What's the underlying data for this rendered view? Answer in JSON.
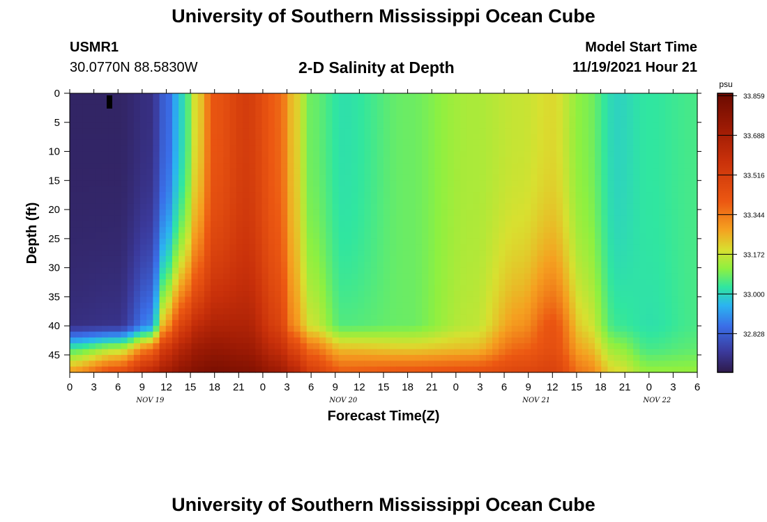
{
  "header": {
    "title": "University of Southern Mississippi Ocean Cube",
    "station": "USMR1",
    "coordinates": "30.0770N  88.5830W",
    "plot_title": "2-D Salinity at Depth",
    "model_start_label": "Model Start Time",
    "model_start_value": "11/19/2021 Hour 21"
  },
  "footer": {
    "title": "University of Southern Mississippi Ocean Cube"
  },
  "chart_data": {
    "type": "heatmap",
    "title": "2-D Salinity at Depth",
    "xlabel": "Forecast Time(Z)",
    "ylabel": "Depth (ft)",
    "x_tick_labels": [
      "0",
      "3",
      "6",
      "9",
      "12",
      "15",
      "18",
      "21",
      "0",
      "3",
      "6",
      "9",
      "12",
      "15",
      "18",
      "21",
      "0",
      "3",
      "6",
      "9",
      "12",
      "15",
      "18",
      "21",
      "0",
      "3",
      "6"
    ],
    "x_date_labels": [
      {
        "label": "NOV 19",
        "hour": 10
      },
      {
        "label": "NOV 20",
        "hour": 34
      },
      {
        "label": "NOV 21",
        "hour": 58
      },
      {
        "label": "NOV 22",
        "hour": 73
      }
    ],
    "xlim_hours": [
      0,
      78
    ],
    "y_tick_labels": [
      "0",
      "5",
      "10",
      "15",
      "20",
      "25",
      "30",
      "35",
      "40",
      "45"
    ],
    "y_tick_values": [
      0,
      5,
      10,
      15,
      20,
      25,
      30,
      35,
      40,
      45
    ],
    "ylim": [
      0,
      48
    ],
    "y_inverted": true,
    "colorbar": {
      "unit": "psu",
      "tick_labels": [
        "33.859",
        "33.688",
        "33.516",
        "33.344",
        "33.172",
        "33.000",
        "32.828"
      ],
      "tick_values": [
        33.859,
        33.688,
        33.516,
        33.344,
        33.172,
        33.0,
        32.828
      ],
      "range": [
        32.66,
        33.87
      ],
      "stops": [
        {
          "v": 32.66,
          "color": "#2e1a4a"
        },
        {
          "v": 32.75,
          "color": "#3b3a9c"
        },
        {
          "v": 32.86,
          "color": "#3a6ee8"
        },
        {
          "v": 32.95,
          "color": "#2bb4f0"
        },
        {
          "v": 33.03,
          "color": "#30e6a0"
        },
        {
          "v": 33.11,
          "color": "#8ef040"
        },
        {
          "v": 33.19,
          "color": "#d8e030"
        },
        {
          "v": 33.28,
          "color": "#f5a020"
        },
        {
          "v": 33.4,
          "color": "#ec5812"
        },
        {
          "v": 33.58,
          "color": "#c8300a"
        },
        {
          "v": 33.72,
          "color": "#9c1a04"
        },
        {
          "v": 33.87,
          "color": "#6a0a00"
        }
      ]
    },
    "profiles_hours": [
      0,
      6,
      10,
      12,
      14,
      16,
      18,
      22,
      26,
      28,
      30,
      34,
      42,
      50,
      56,
      60,
      64,
      68,
      72,
      78
    ],
    "profiles": [
      {
        "surface": 32.69,
        "d40": 32.72,
        "d44": 33.05,
        "bottom": 33.3
      },
      {
        "surface": 32.69,
        "d40": 32.73,
        "d44": 33.15,
        "bottom": 33.45
      },
      {
        "surface": 32.72,
        "d40": 32.9,
        "d44": 33.35,
        "bottom": 33.62
      },
      {
        "surface": 32.84,
        "d40": 33.3,
        "d44": 33.55,
        "bottom": 33.7
      },
      {
        "surface": 33.0,
        "d40": 33.5,
        "d44": 33.65,
        "bottom": 33.76
      },
      {
        "surface": 33.22,
        "d40": 33.62,
        "d44": 33.72,
        "bottom": 33.8
      },
      {
        "surface": 33.42,
        "d40": 33.66,
        "d44": 33.74,
        "bottom": 33.82
      },
      {
        "surface": 33.52,
        "d40": 33.66,
        "d44": 33.72,
        "bottom": 33.8
      },
      {
        "surface": 33.38,
        "d40": 33.5,
        "d44": 33.6,
        "bottom": 33.72
      },
      {
        "surface": 33.22,
        "d40": 33.3,
        "d44": 33.48,
        "bottom": 33.64
      },
      {
        "surface": 33.08,
        "d40": 33.18,
        "d44": 33.36,
        "bottom": 33.52
      },
      {
        "surface": 33.02,
        "d40": 33.06,
        "d44": 33.24,
        "bottom": 33.4
      },
      {
        "surface": 33.08,
        "d40": 33.08,
        "d44": 33.22,
        "bottom": 33.42
      },
      {
        "surface": 33.14,
        "d40": 33.16,
        "d44": 33.24,
        "bottom": 33.44
      },
      {
        "surface": 33.17,
        "d40": 33.3,
        "d44": 33.38,
        "bottom": 33.48
      },
      {
        "surface": 33.2,
        "d40": 33.42,
        "d44": 33.44,
        "bottom": 33.5
      },
      {
        "surface": 33.1,
        "d40": 33.2,
        "d44": 33.26,
        "bottom": 33.34
      },
      {
        "surface": 33.0,
        "d40": 33.04,
        "d44": 33.12,
        "bottom": 33.2
      },
      {
        "surface": 33.03,
        "d40": 33.02,
        "d44": 33.05,
        "bottom": 33.12
      },
      {
        "surface": 33.05,
        "d40": 33.05,
        "d44": 33.07,
        "bottom": 33.12
      }
    ]
  }
}
